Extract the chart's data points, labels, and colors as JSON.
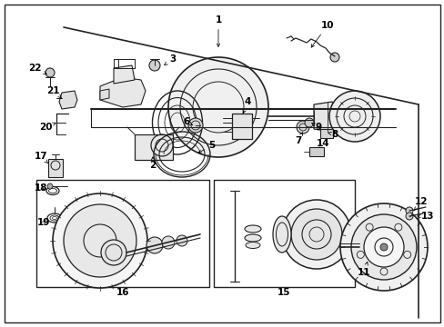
{
  "background_color": "#ffffff",
  "border_color": "#000000",
  "lc": "#222222",
  "font_size": 7,
  "border_linewidth": 1.0,
  "figsize": [
    4.89,
    3.6
  ],
  "dpi": 100
}
